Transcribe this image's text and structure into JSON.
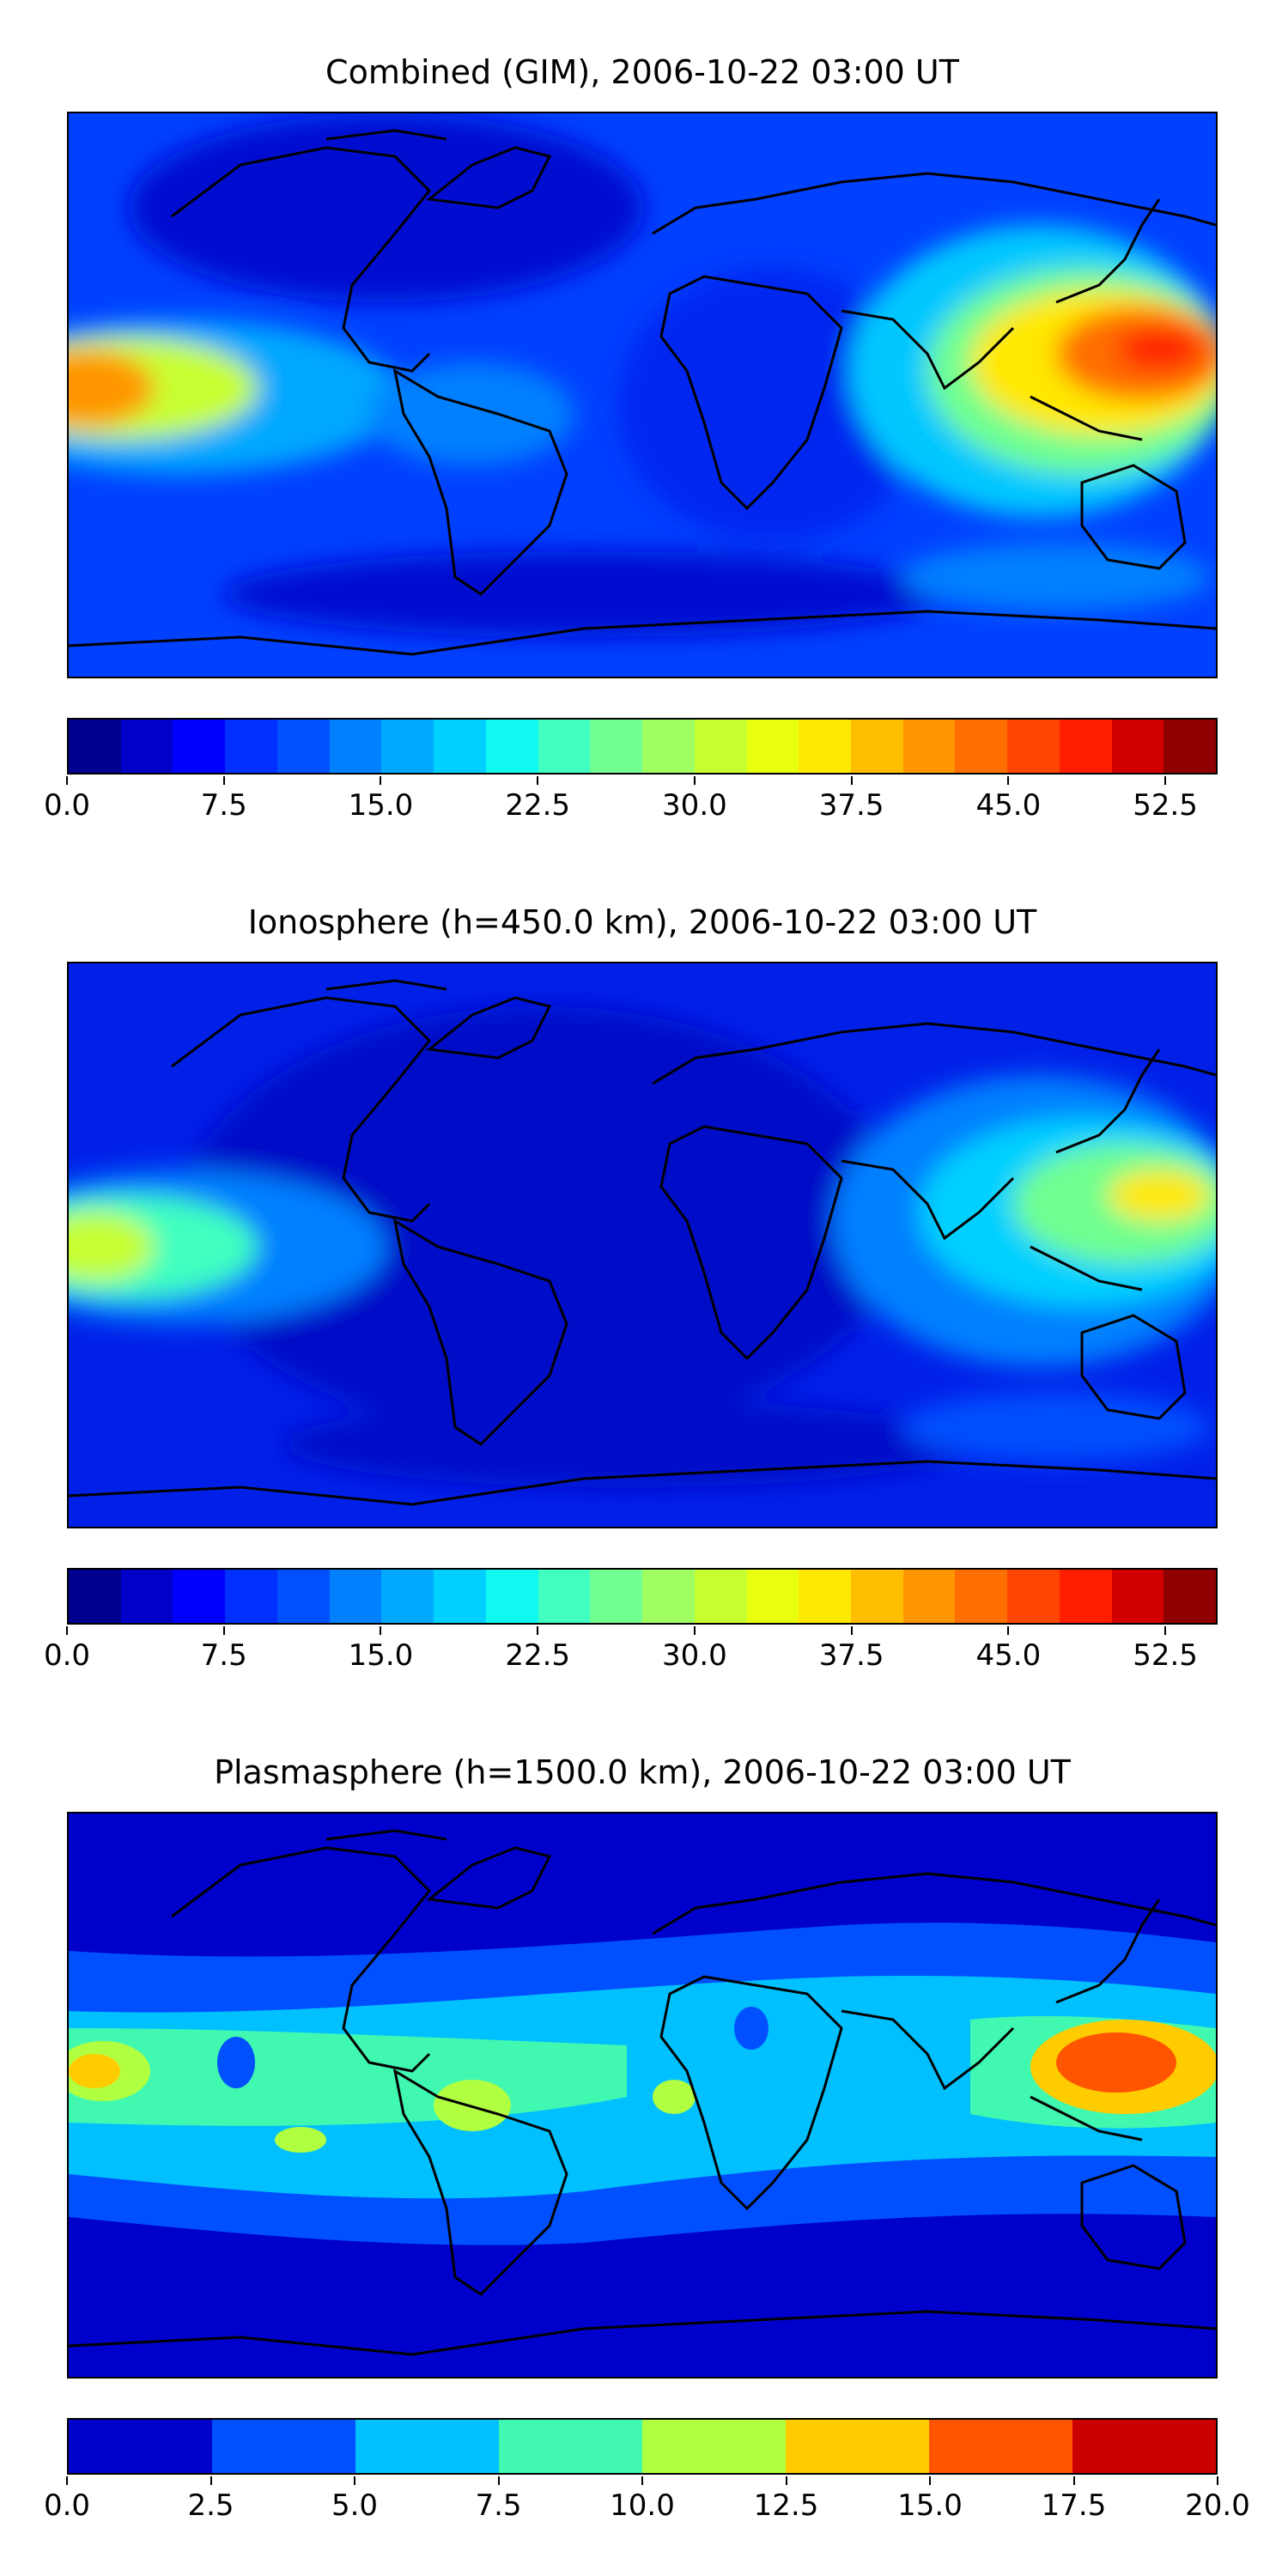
{
  "figure": {
    "panels": [
      {
        "id": "combined",
        "title": "Combined (GIM), 2006-10-22 03:00 UT",
        "colorbar": {
          "min": 0.0,
          "max": 55.0,
          "levels": 22,
          "ticks": [
            "0.0",
            "7.5",
            "15.0",
            "22.5",
            "30.0",
            "37.5",
            "45.0",
            "52.5"
          ],
          "tick_values": [
            0.0,
            7.5,
            15.0,
            22.5,
            30.0,
            37.5,
            45.0,
            52.5
          ]
        }
      },
      {
        "id": "ionosphere",
        "title": "Ionosphere  (h=450.0 km), 2006-10-22 03:00 UT",
        "colorbar": {
          "min": 0.0,
          "max": 55.0,
          "levels": 22,
          "ticks": [
            "0.0",
            "7.5",
            "15.0",
            "22.5",
            "30.0",
            "37.5",
            "45.0",
            "52.5"
          ],
          "tick_values": [
            0.0,
            7.5,
            15.0,
            22.5,
            30.0,
            37.5,
            45.0,
            52.5
          ]
        }
      },
      {
        "id": "plasmasphere",
        "title": "Plasmasphere (h=1500.0 km), 2006-10-22 03:00 UT",
        "colorbar": {
          "min": 0.0,
          "max": 20.0,
          "levels": 8,
          "ticks": [
            "0.0",
            "2.5",
            "5.0",
            "7.5",
            "10.0",
            "12.5",
            "15.0",
            "17.5",
            "20.0"
          ],
          "tick_values": [
            0.0,
            2.5,
            5.0,
            7.5,
            10.0,
            12.5,
            15.0,
            17.5,
            20.0
          ]
        }
      }
    ],
    "colormap_jet_22": [
      "#00008f",
      "#0000c8",
      "#0000ff",
      "#0030ff",
      "#0050ff",
      "#0080ff",
      "#00a8ff",
      "#00d0ff",
      "#10f8f0",
      "#40ffc0",
      "#70ff90",
      "#a0ff60",
      "#c8ff30",
      "#e8ff10",
      "#ffe800",
      "#ffbf00",
      "#ff9600",
      "#ff6e00",
      "#ff4600",
      "#ff1e00",
      "#d00000",
      "#8f0000"
    ],
    "colormap_jet_8": [
      "#0000cc",
      "#0050ff",
      "#00c0ff",
      "#40f8b0",
      "#b0ff40",
      "#ffcc00",
      "#ff5500",
      "#cc0000"
    ]
  }
}
